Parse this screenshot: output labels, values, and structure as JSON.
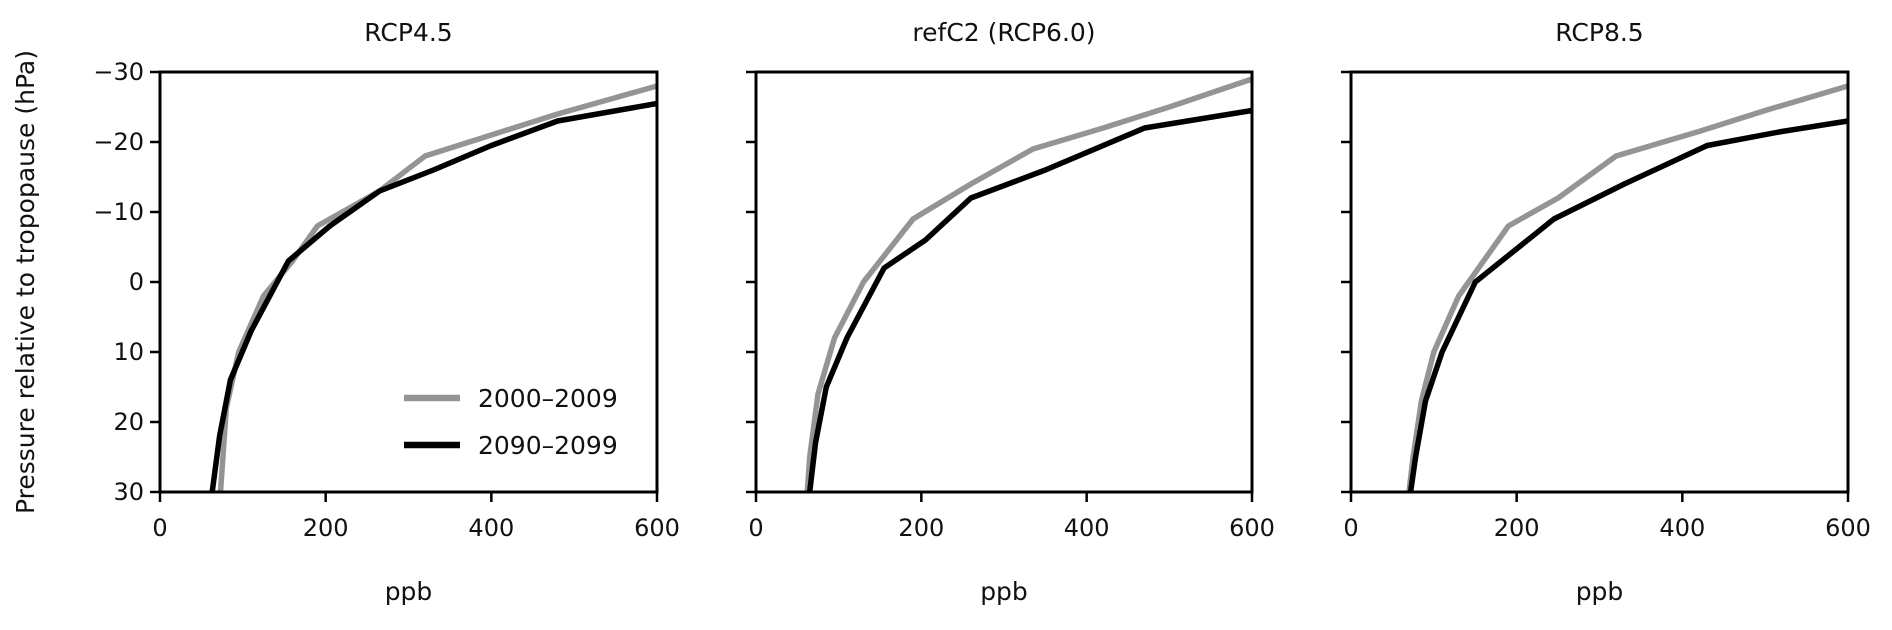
{
  "figure": {
    "ylabel": "Pressure relative to tropopause (hPa)"
  },
  "chart_data": [
    {
      "type": "line",
      "title": "RCP4.5",
      "xlabel": "ppb",
      "ylabel": "Pressure relative to tropopause (hPa)",
      "xlim": [
        0,
        600
      ],
      "ylim": [
        30,
        -30
      ],
      "xticks": [
        0,
        200,
        400,
        600
      ],
      "yticks": [
        -30,
        -20,
        -10,
        0,
        10,
        20,
        30
      ],
      "grid": false,
      "legend": "lower-right",
      "series": [
        {
          "name": "2000–2009",
          "color": "#949494",
          "x": [
            73,
            80,
            95,
            125,
            160,
            190,
            265,
            320,
            400,
            480,
            540,
            600
          ],
          "y": [
            30,
            18,
            10,
            2,
            -3,
            -8,
            -13,
            -18,
            -21,
            -24,
            -26,
            -28
          ]
        },
        {
          "name": "2090–2099",
          "color": "#000000",
          "x": [
            63,
            72,
            85,
            110,
            155,
            205,
            265,
            330,
            400,
            480,
            600
          ],
          "y": [
            30,
            22,
            14,
            7,
            -3,
            -8,
            -13,
            -16,
            -19.5,
            -23,
            -25.5
          ]
        }
      ]
    },
    {
      "type": "line",
      "title": "refC2 (RCP6.0)",
      "xlabel": "ppb",
      "xlim": [
        0,
        600
      ],
      "ylim": [
        30,
        -30
      ],
      "xticks": [
        0,
        200,
        400,
        600
      ],
      "yticks": [
        -30,
        -20,
        -10,
        0,
        10,
        20,
        30
      ],
      "grid": false,
      "series": [
        {
          "name": "2000–2009",
          "color": "#949494",
          "x": [
            62,
            65,
            75,
            95,
            130,
            190,
            260,
            335,
            420,
            500,
            600
          ],
          "y": [
            30,
            25,
            16,
            8,
            0,
            -9,
            -14,
            -19,
            -22,
            -25,
            -29
          ]
        },
        {
          "name": "2090–2099",
          "color": "#000000",
          "x": [
            65,
            72,
            85,
            110,
            155,
            205,
            260,
            350,
            470,
            600
          ],
          "y": [
            30,
            23,
            15,
            8,
            -2,
            -6,
            -12,
            -16,
            -22,
            -24.5
          ]
        }
      ]
    },
    {
      "type": "line",
      "title": "RCP8.5",
      "xlabel": "ppb",
      "xlim": [
        0,
        600
      ],
      "ylim": [
        30,
        -30
      ],
      "xticks": [
        0,
        200,
        400,
        600
      ],
      "yticks": [
        -30,
        -20,
        -10,
        0,
        10,
        20,
        30
      ],
      "grid": false,
      "series": [
        {
          "name": "2000–2009",
          "color": "#949494",
          "x": [
            70,
            75,
            85,
            100,
            130,
            190,
            250,
            320,
            420,
            500,
            600
          ],
          "y": [
            30,
            25,
            17,
            10,
            2,
            -8,
            -12,
            -18,
            -21.5,
            -24.5,
            -28
          ]
        },
        {
          "name": "2090–2099",
          "color": "#000000",
          "x": [
            72,
            78,
            90,
            110,
            150,
            245,
            330,
            430,
            520,
            600
          ],
          "y": [
            30,
            25,
            17,
            10,
            0,
            -9,
            -14,
            -19.5,
            -21.5,
            -23
          ]
        }
      ]
    }
  ]
}
